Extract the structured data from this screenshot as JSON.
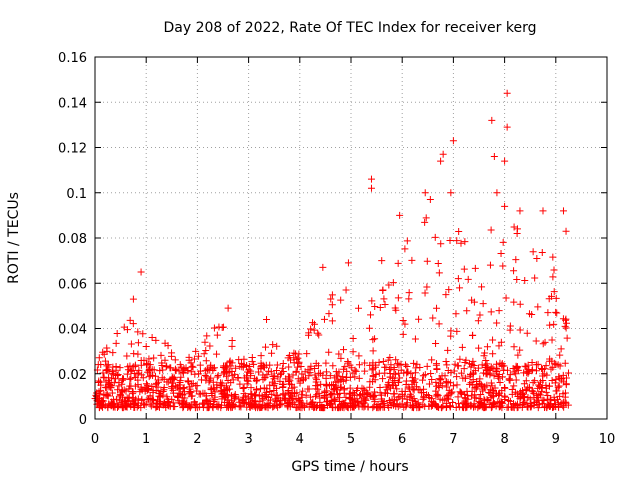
{
  "chart_data": {
    "type": "scatter",
    "title": "Day 208 of 2022, Rate Of TEC Index for receiver kerg",
    "xlabel": "GPS time / hours",
    "ylabel": "ROTI / TECUs",
    "xlim": [
      0,
      10
    ],
    "ylim": [
      0,
      0.16
    ],
    "xticks": [
      0,
      1,
      2,
      3,
      4,
      5,
      6,
      7,
      8,
      9,
      10
    ],
    "yticks": [
      0,
      0.02,
      0.04,
      0.06,
      0.08,
      0.1,
      0.12,
      0.14,
      0.16
    ],
    "xtick_labels": [
      "0",
      "1",
      "2",
      "3",
      "4",
      "5",
      "6",
      "7",
      "8",
      "9",
      "10"
    ],
    "ytick_labels": [
      "0",
      "0.02",
      "0.04",
      "0.06",
      "0.08",
      "0.1",
      "0.12",
      "0.14",
      "0.16"
    ],
    "grid": true,
    "marker": "+",
    "color": "#ff0000",
    "notable_points": [
      {
        "x": 0.02,
        "y": 0.009
      },
      {
        "x": 0.9,
        "y": 0.065
      },
      {
        "x": 0.75,
        "y": 0.053
      },
      {
        "x": 2.6,
        "y": 0.049
      },
      {
        "x": 3.35,
        "y": 0.044
      },
      {
        "x": 4.45,
        "y": 0.067
      },
      {
        "x": 4.95,
        "y": 0.069
      },
      {
        "x": 5.4,
        "y": 0.106
      },
      {
        "x": 5.4,
        "y": 0.102
      },
      {
        "x": 5.6,
        "y": 0.07
      },
      {
        "x": 5.95,
        "y": 0.09
      },
      {
        "x": 6.45,
        "y": 0.1
      },
      {
        "x": 6.55,
        "y": 0.097
      },
      {
        "x": 6.75,
        "y": 0.114
      },
      {
        "x": 6.8,
        "y": 0.117
      },
      {
        "x": 7.0,
        "y": 0.123
      },
      {
        "x": 6.95,
        "y": 0.1
      },
      {
        "x": 7.75,
        "y": 0.132
      },
      {
        "x": 7.8,
        "y": 0.116
      },
      {
        "x": 7.85,
        "y": 0.1
      },
      {
        "x": 8.05,
        "y": 0.144
      },
      {
        "x": 8.05,
        "y": 0.129
      },
      {
        "x": 8.0,
        "y": 0.114
      },
      {
        "x": 8.0,
        "y": 0.094
      },
      {
        "x": 8.3,
        "y": 0.092
      },
      {
        "x": 8.75,
        "y": 0.092
      },
      {
        "x": 9.15,
        "y": 0.092
      },
      {
        "x": 9.2,
        "y": 0.083
      }
    ],
    "activity_profile": {
      "hours": [
        0,
        0.5,
        1,
        1.5,
        2,
        2.5,
        3,
        3.5,
        4,
        4.5,
        5,
        5.5,
        6,
        6.5,
        7,
        7.5,
        8,
        8.5,
        9,
        9.25
      ],
      "typical_max_roti": [
        0.03,
        0.04,
        0.05,
        0.03,
        0.032,
        0.045,
        0.028,
        0.035,
        0.03,
        0.06,
        0.065,
        0.05,
        0.08,
        0.09,
        0.085,
        0.08,
        0.09,
        0.085,
        0.075,
        0.06
      ],
      "baseline_roti": 0.005
    }
  }
}
